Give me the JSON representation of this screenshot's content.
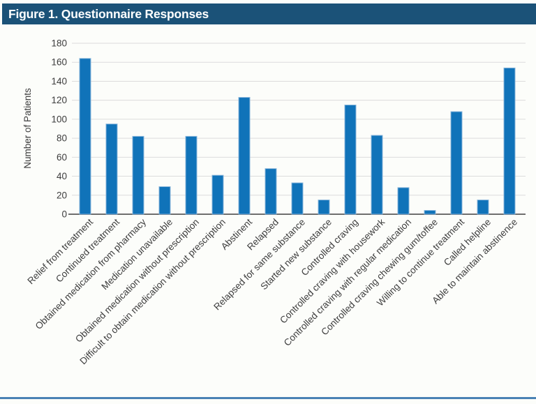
{
  "header": {
    "title": "Figure 1. Questionnaire Responses"
  },
  "chart_data": {
    "type": "bar",
    "title": "Figure 1. Questionnaire Responses",
    "xlabel": "",
    "ylabel": "Number of Patients",
    "ylim": [
      0,
      180
    ],
    "ytick_step": 20,
    "grid": true,
    "legend": "none",
    "categories": [
      "Relief from treatment",
      "Continued treatment",
      "Obtained medication from pharmacy",
      "Medication unavailable",
      "Obtained medication without prescription",
      "Difficult to obtain medication without prescription",
      "Abstinent",
      "Relapsed",
      "Relapsed for same substance",
      "Started new substance",
      "Controlled craving",
      "Controlled craving with housework",
      "Controlled craving with regular medication",
      "Controlled craving chewing gum/toffee",
      "Willing to continue treatment",
      "Called helpline",
      "Able to maintain abstinence"
    ],
    "values": [
      164,
      95,
      82,
      29,
      82,
      41,
      123,
      48,
      33,
      15,
      115,
      83,
      28,
      4,
      108,
      15,
      154
    ]
  },
  "colors": {
    "header_bg": "#1b5278",
    "header_text": "#ffffff",
    "bar_fill": "#1073b9",
    "bar_border": "#8ab6dc",
    "gridline": "#dcdcdc",
    "axis_line": "#6e6e6e",
    "tick_text": "#3d3d3d",
    "divider": "#4a82b4",
    "background": "#fcfdfa"
  }
}
